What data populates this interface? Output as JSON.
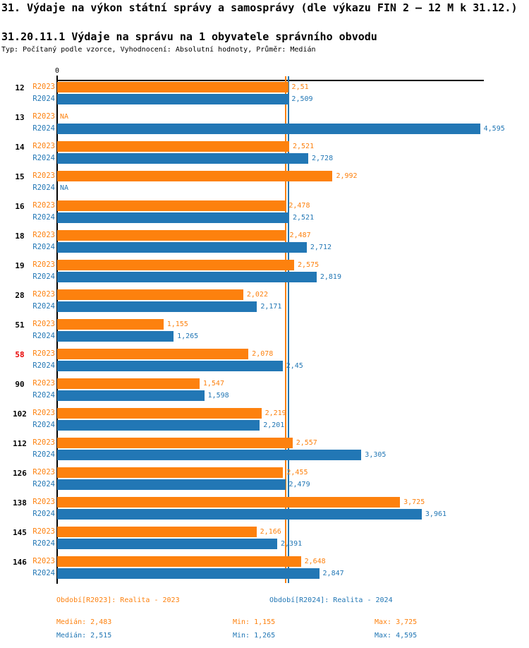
{
  "chart_data": {
    "type": "bar",
    "orientation": "horizontal",
    "title": "31. Výdaje na výkon státní správy a samosprávy (dle výkazu FIN 2 – 12 M k 31.12.)",
    "subtitle": "31.20.11.1 Výdaje na správu na 1 obyvatele správního obvodu",
    "type_note": "Typ: Počítaný podle vzorce, Vyhodnocení: Absolutní hodnoty, Průměr: Medián",
    "axis": {
      "zero_label": "0",
      "xlim": [
        0,
        4.64
      ],
      "grid": false
    },
    "series": [
      {
        "name": "R2023",
        "legend": "Období[R2023]: Realita - 2023",
        "color": "#fd810e",
        "median": 2.483,
        "min": 1.155,
        "max": 3.725
      },
      {
        "name": "R2024",
        "legend": "Období[R2024]: Realita - 2024",
        "color": "#2277b5",
        "median": 2.515,
        "min": 1.265,
        "max": 4.595
      }
    ],
    "median_lines": [
      {
        "series": "R2023",
        "value": 2.483,
        "color": "#fd810e"
      },
      {
        "series": "R2024",
        "value": 2.515,
        "color": "#2277b5"
      }
    ],
    "rows": [
      {
        "id": "12",
        "highlight": false,
        "r2023": 2.51,
        "r2023_label": "2,51",
        "r2024": 2.509,
        "r2024_label": "2,509"
      },
      {
        "id": "13",
        "highlight": false,
        "r2023": null,
        "r2023_label": "NA",
        "r2024": 4.595,
        "r2024_label": "4,595"
      },
      {
        "id": "14",
        "highlight": false,
        "r2023": 2.521,
        "r2023_label": "2,521",
        "r2024": 2.728,
        "r2024_label": "2,728"
      },
      {
        "id": "15",
        "highlight": false,
        "r2023": 2.992,
        "r2023_label": "2,992",
        "r2024": null,
        "r2024_label": "NA"
      },
      {
        "id": "16",
        "highlight": false,
        "r2023": 2.478,
        "r2023_label": "2,478",
        "r2024": 2.521,
        "r2024_label": "2,521"
      },
      {
        "id": "18",
        "highlight": false,
        "r2023": 2.487,
        "r2023_label": "2,487",
        "r2024": 2.712,
        "r2024_label": "2,712"
      },
      {
        "id": "19",
        "highlight": false,
        "r2023": 2.575,
        "r2023_label": "2,575",
        "r2024": 2.819,
        "r2024_label": "2,819"
      },
      {
        "id": "28",
        "highlight": false,
        "r2023": 2.022,
        "r2023_label": "2,022",
        "r2024": 2.171,
        "r2024_label": "2,171"
      },
      {
        "id": "51",
        "highlight": false,
        "r2023": 1.155,
        "r2023_label": "1,155",
        "r2024": 1.265,
        "r2024_label": "1,265"
      },
      {
        "id": "58",
        "highlight": true,
        "r2023": 2.078,
        "r2023_label": "2,078",
        "r2024": 2.45,
        "r2024_label": "2,45"
      },
      {
        "id": "90",
        "highlight": false,
        "r2023": 1.547,
        "r2023_label": "1,547",
        "r2024": 1.598,
        "r2024_label": "1,598"
      },
      {
        "id": "102",
        "highlight": false,
        "r2023": 2.219,
        "r2023_label": "2,219",
        "r2024": 2.201,
        "r2024_label": "2,201"
      },
      {
        "id": "112",
        "highlight": false,
        "r2023": 2.557,
        "r2023_label": "2,557",
        "r2024": 3.305,
        "r2024_label": "3,305"
      },
      {
        "id": "126",
        "highlight": false,
        "r2023": 2.455,
        "r2023_label": "2,455",
        "r2024": 2.479,
        "r2024_label": "2,479"
      },
      {
        "id": "138",
        "highlight": false,
        "r2023": 3.725,
        "r2023_label": "3,725",
        "r2024": 3.961,
        "r2024_label": "3,961"
      },
      {
        "id": "145",
        "highlight": false,
        "r2023": 2.166,
        "r2023_label": "2,166",
        "r2024": 2.391,
        "r2024_label": "2,391"
      },
      {
        "id": "146",
        "highlight": false,
        "r2023": 2.648,
        "r2023_label": "2,648",
        "r2024": 2.847,
        "r2024_label": "2,847"
      }
    ]
  },
  "legend": {
    "period_2023": "Období[R2023]: Realita - 2023",
    "period_2024": "Období[R2024]: Realita - 2024",
    "stats_2023": {
      "median": "Medián: 2,483",
      "min": "Min: 1,155",
      "max": "Max: 3,725"
    },
    "stats_2024": {
      "median": "Medián: 2,515",
      "min": "Min: 1,265",
      "max": "Max: 4,595"
    }
  },
  "colors": {
    "r2023": "#fd810e",
    "r2024": "#2277b5",
    "highlight_row": "#e80000",
    "axis": "#000000"
  }
}
